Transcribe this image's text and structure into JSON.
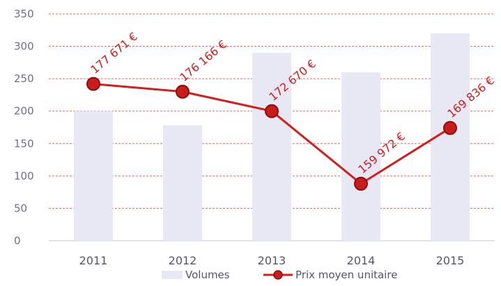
{
  "chart_data": {
    "type": "bar",
    "categories": [
      "2011",
      "2012",
      "2013",
      "2014",
      "2015"
    ],
    "ylim": [
      0,
      350
    ],
    "yticks": [
      "0",
      "50",
      "100",
      "150",
      "200",
      "250",
      "300",
      "350"
    ],
    "grid": true,
    "legend_position": "bottom",
    "series": [
      {
        "name": "Volumes",
        "type": "bar",
        "values": [
          200,
          178,
          290,
          260,
          320
        ],
        "color": "#e8e8f4"
      },
      {
        "name": "Prix moyen unitaire",
        "type": "line",
        "values": [
          242,
          230,
          200,
          88,
          174
        ],
        "labels": [
          "177 671 €",
          "176 166 €",
          "172 670 €",
          "159 972 €",
          "169 836 €"
        ],
        "color": "#d41e1e"
      }
    ]
  },
  "colors": {
    "grid": "#e03030",
    "axis_text": "#6f6f86",
    "accent": "#d41e1e"
  }
}
